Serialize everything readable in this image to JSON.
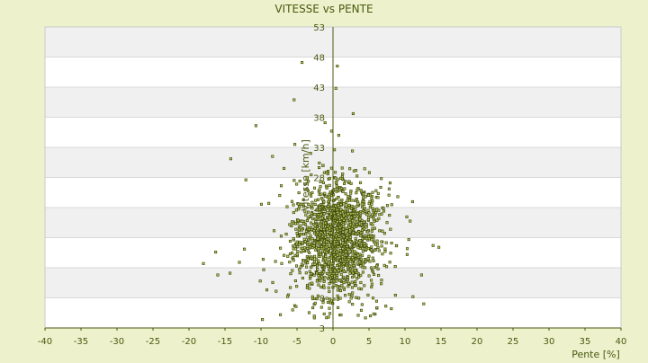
{
  "chart_data": {
    "type": "scatter",
    "title": "VITESSE vs PENTE",
    "xlabel": "Pente [%]",
    "ylabel": "Vitesse [km/h]",
    "xlim": [
      -40,
      40
    ],
    "ylim": [
      3,
      53
    ],
    "x_ticks": [
      "-40",
      "-35",
      "-30",
      "-25",
      "-20",
      "-15",
      "-10",
      "-5",
      "0",
      "5",
      "10",
      "15",
      "20",
      "25",
      "30",
      "35",
      "40"
    ],
    "y_ticks": [
      "3",
      "8",
      "13",
      "18",
      "23",
      "28",
      "33",
      "38",
      "43",
      "48",
      "53"
    ],
    "grid": "horizontal-bands",
    "legend": "none",
    "colors": {
      "background": "#edf1cc",
      "plot_band_light": "#ffffff",
      "plot_band_dark": "#f0f0f0",
      "gridline": "#d8d8d8",
      "axis": "#4a5a10",
      "text": "#4a5a10",
      "marker_fill": "#c8d26a",
      "marker_stroke": "#3d4a0b"
    },
    "series": [
      {
        "points": [
          [
            -4.3,
            47.1
          ],
          [
            0.6,
            46.5
          ],
          [
            0.4,
            42.8
          ],
          [
            -5.4,
            40.9
          ],
          [
            2.8,
            38.6
          ],
          [
            -1.1,
            37.1
          ],
          [
            -10.7,
            36.6
          ],
          [
            -0.2,
            35.7
          ],
          [
            0.8,
            35.0
          ],
          [
            -5.3,
            33.5
          ],
          [
            0.2,
            32.6
          ],
          [
            -3.1,
            32.0
          ],
          [
            -14.2,
            31.1
          ],
          [
            -8.4,
            31.5
          ],
          [
            2.7,
            32.4
          ],
          [
            -1.9,
            30.4
          ],
          [
            -6.8,
            29.5
          ],
          [
            1.3,
            28.1
          ],
          [
            -12.1,
            27.6
          ],
          [
            -4.6,
            27.4
          ],
          [
            3.5,
            26.2
          ],
          [
            7.8,
            26.1
          ],
          [
            9.0,
            24.8
          ],
          [
            -7.4,
            25.0
          ],
          [
            -12.3,
            16.1
          ],
          [
            -16.3,
            15.6
          ],
          [
            -18.0,
            13.7
          ],
          [
            -16.0,
            11.8
          ],
          [
            -14.3,
            12.1
          ],
          [
            -13.0,
            13.9
          ],
          [
            -10.1,
            10.8
          ],
          [
            -9.7,
            14.4
          ],
          [
            -7.9,
            9.1
          ],
          [
            -7.3,
            5.2
          ],
          [
            -5.6,
            6.0
          ],
          [
            -6.2,
            8.5
          ],
          [
            13.9,
            16.7
          ],
          [
            14.7,
            16.4
          ],
          [
            10.3,
            15.2
          ],
          [
            12.3,
            11.8
          ],
          [
            11.1,
            8.2
          ],
          [
            12.6,
            7.0
          ],
          [
            8.1,
            6.2
          ],
          [
            6.1,
            6.3
          ],
          [
            -9.8,
            4.4
          ],
          [
            -0.9,
            4.7
          ],
          [
            3.5,
            5.1
          ],
          [
            5.2,
            5.0
          ]
        ],
        "cloud": {
          "count": 1500,
          "x_center": 0.5,
          "y_center": 18,
          "x_spread": 3.0,
          "y_spread": 4.8
        }
      }
    ]
  }
}
